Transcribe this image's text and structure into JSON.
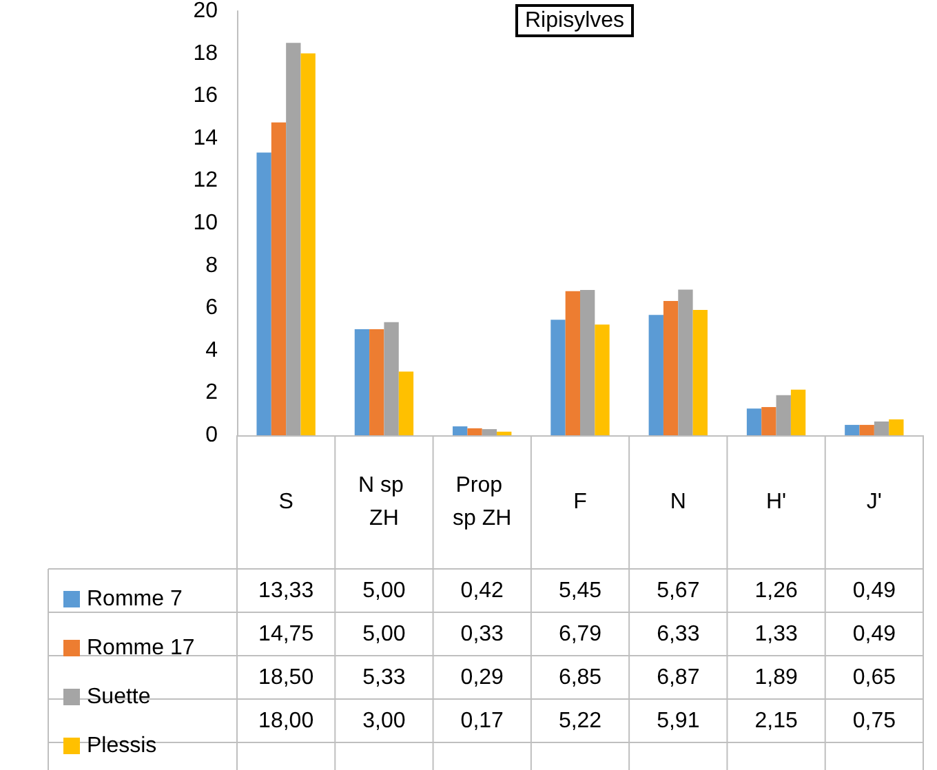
{
  "chart_data": {
    "type": "bar",
    "title": "Ripisylves",
    "categories": [
      "S",
      "N sp ZH",
      "Prop sp ZH",
      "F",
      "N",
      "H'",
      "J'"
    ],
    "series": [
      {
        "name": "Romme 7",
        "color": "#5b9bd5",
        "values": [
          13.33,
          5.0,
          0.42,
          5.45,
          5.67,
          1.26,
          0.49
        ],
        "value_labels": [
          "13,33",
          "5,00",
          "0,42",
          "5,45",
          "5,67",
          "1,26",
          "0,49"
        ]
      },
      {
        "name": "Romme 17",
        "color": "#ed7d31",
        "values": [
          14.75,
          5.0,
          0.33,
          6.79,
          6.33,
          1.33,
          0.49
        ],
        "value_labels": [
          "14,75",
          "5,00",
          "0,33",
          "6,79",
          "6,33",
          "1,33",
          "0,49"
        ]
      },
      {
        "name": "Suette",
        "color": "#a5a5a5",
        "values": [
          18.5,
          5.33,
          0.29,
          6.85,
          6.87,
          1.89,
          0.65
        ],
        "value_labels": [
          "18,50",
          "5,33",
          "0,29",
          "6,85",
          "6,87",
          "1,89",
          "0,65"
        ]
      },
      {
        "name": "Plessis",
        "color": "#ffc000",
        "values": [
          18.0,
          3.0,
          0.17,
          5.22,
          5.91,
          2.15,
          0.75
        ],
        "value_labels": [
          "18,00",
          "3,00",
          "0,17",
          "5,22",
          "5,91",
          "2,15",
          "0,75"
        ]
      }
    ],
    "ylim": [
      0,
      20
    ],
    "yticks": [
      0,
      2,
      4,
      6,
      8,
      10,
      12,
      14,
      16,
      18,
      20
    ],
    "grid": false,
    "legend": "bottom"
  }
}
